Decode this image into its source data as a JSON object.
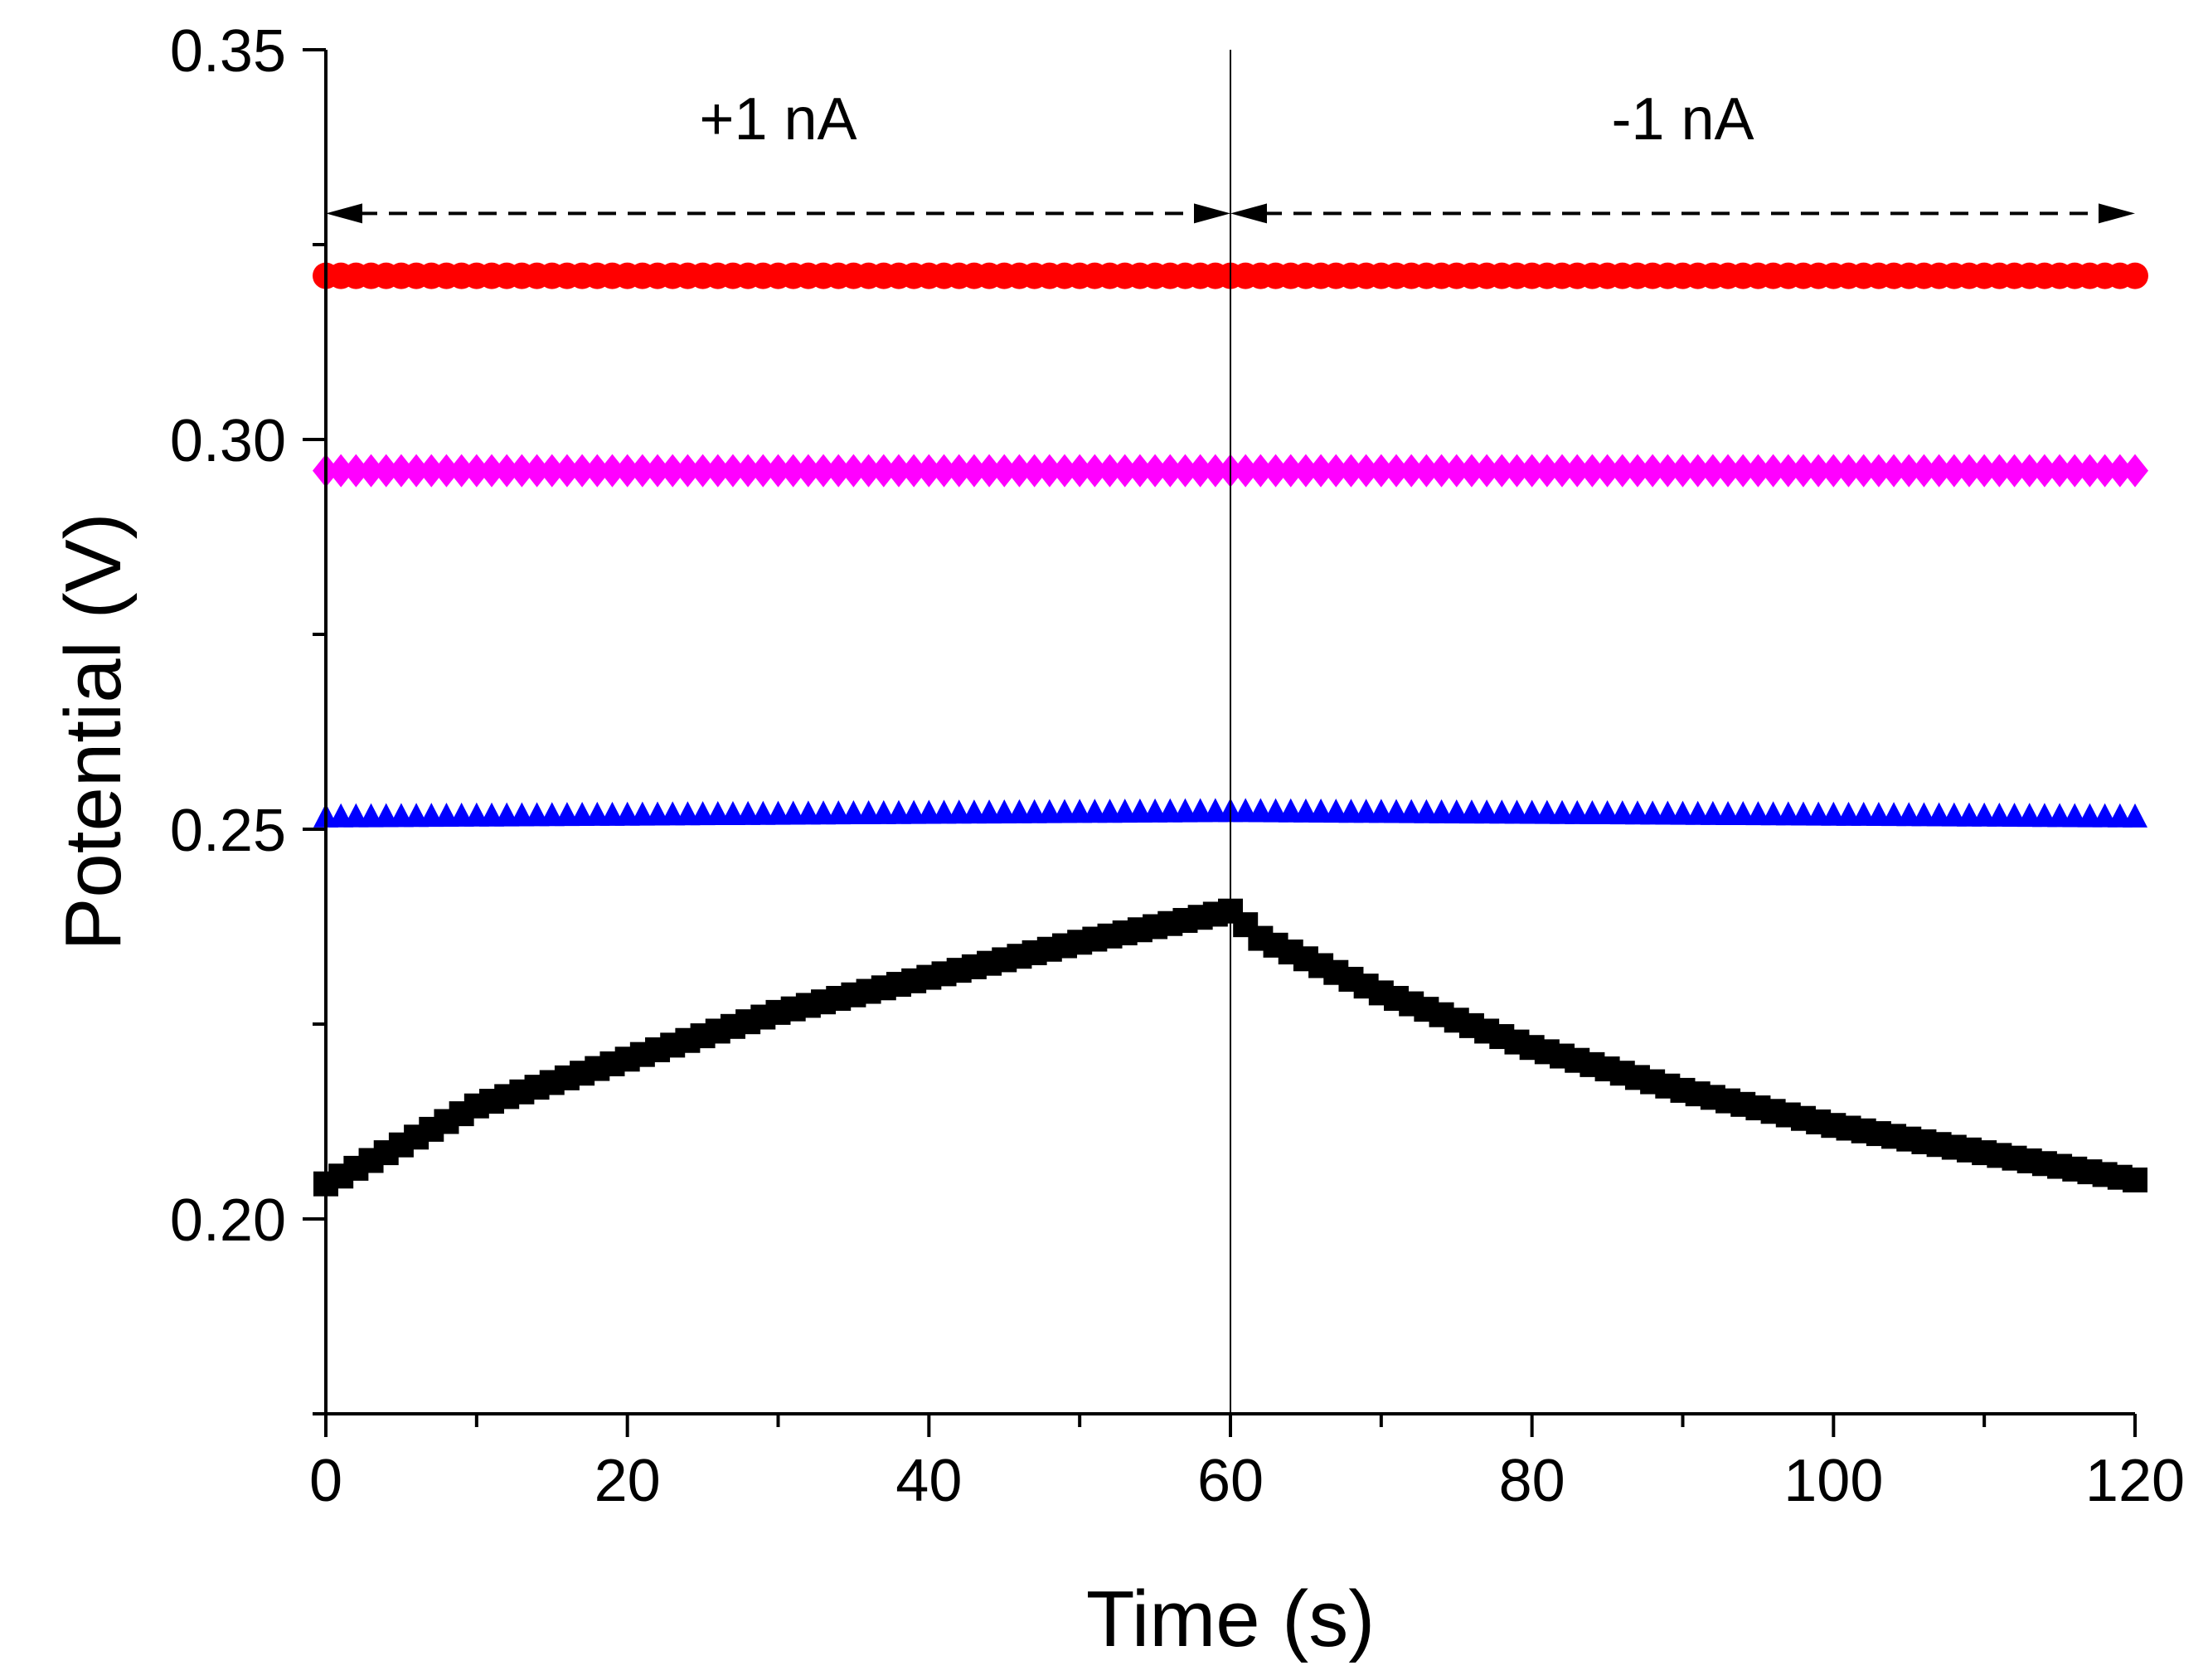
{
  "chart_data": {
    "type": "scatter",
    "title": "",
    "xlabel": "Time (s)",
    "ylabel": "Potential (V)",
    "xlim": [
      0,
      120
    ],
    "ylim": [
      0.175,
      0.35
    ],
    "xticks": [
      0,
      20,
      40,
      60,
      80,
      100,
      120
    ],
    "xtick_labels": [
      "0",
      "20",
      "40",
      "60",
      "80",
      "100",
      "120"
    ],
    "yticks": [
      0.2,
      0.25,
      0.3,
      0.35
    ],
    "ytick_labels": [
      "0.20",
      "0.25",
      "0.30",
      "0.35"
    ],
    "grid": false,
    "legend": null,
    "annotations": [
      {
        "text": "+1 nA",
        "x_start": 0,
        "x_end": 60
      },
      {
        "text": "-1 nA",
        "x_start": 60,
        "x_end": 120
      }
    ],
    "vertical_line_x": 60,
    "series": [
      {
        "name": "series-red",
        "marker": "circle",
        "color": "#ff0000",
        "x": [
          0,
          60,
          120
        ],
        "y": [
          0.321,
          0.321,
          0.321
        ]
      },
      {
        "name": "series-magenta",
        "marker": "diamond",
        "color": "#ff00ff",
        "x": [
          0,
          60,
          120
        ],
        "y": [
          0.296,
          0.296,
          0.296
        ]
      },
      {
        "name": "series-blue",
        "marker": "triangle",
        "color": "#0000ff",
        "x": [
          0,
          60,
          120
        ],
        "y": [
          0.2515,
          0.2522,
          0.2515
        ]
      },
      {
        "name": "series-black",
        "marker": "square",
        "color": "#000000",
        "x": [
          0,
          5,
          10,
          20,
          30,
          40,
          50,
          55,
          60,
          62,
          70,
          80,
          90,
          100,
          110,
          120
        ],
        "y": [
          0.2045,
          0.2095,
          0.2145,
          0.2205,
          0.2265,
          0.231,
          0.2355,
          0.2375,
          0.2395,
          0.236,
          0.229,
          0.222,
          0.2165,
          0.212,
          0.2085,
          0.205
        ]
      }
    ]
  }
}
